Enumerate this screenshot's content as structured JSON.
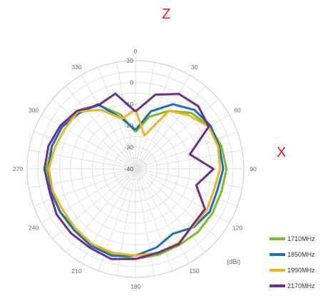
{
  "labels": {
    "top": "Z",
    "right": "X"
  },
  "chart_data": {
    "type": "polar-line",
    "unit": "(dBi)",
    "angle_ticks": [
      "0",
      "30",
      "60",
      "90",
      "120",
      "150",
      "180",
      "210",
      "240",
      "270",
      "300",
      "330"
    ],
    "radial_ticks": [
      "10",
      "0",
      "-10",
      "-20",
      "-30",
      "-40"
    ],
    "rlim": [
      -40,
      10
    ],
    "angle_direction": "clockwise",
    "angle_zero": "top",
    "grid": true,
    "legend_position": "bottom-right",
    "angles": [
      0,
      15,
      30,
      45,
      60,
      75,
      90,
      105,
      120,
      135,
      150,
      165,
      180,
      195,
      210,
      225,
      240,
      255,
      270,
      285,
      300,
      315,
      330,
      345
    ],
    "series": [
      {
        "name": "1710MHz",
        "color": "#7cbd2b",
        "values": [
          -23,
          -15,
          -9,
          -3.5,
          -0.5,
          1,
          2,
          1,
          1,
          1,
          0.5,
          1,
          1.5,
          1,
          0,
          -1,
          0,
          0,
          1,
          0,
          -1,
          -3,
          -6,
          -14
        ]
      },
      {
        "name": "1850MHz",
        "color": "#1f6eb8",
        "values": [
          -22,
          -12.5,
          -5.5,
          -1.5,
          0,
          0,
          0.5,
          -1,
          -0.5,
          -2,
          -5.5,
          -2.5,
          0,
          1.5,
          1,
          0,
          0,
          0.5,
          0,
          0,
          -1,
          -3.5,
          -5.5,
          -16
        ]
      },
      {
        "name": "1990MHz",
        "color": "#f0b323",
        "values": [
          -12.5,
          -24,
          -9,
          -5,
          -1,
          -0.5,
          -1,
          -2.5,
          -2,
          -2.5,
          -0.5,
          0,
          0,
          0,
          0,
          -1,
          -1.5,
          -0.5,
          0,
          -1.5,
          -2.5,
          -2.5,
          -8.5,
          -16
        ]
      },
      {
        "name": "2170MHz",
        "color": "#6a2f8f",
        "values": [
          -13.5,
          -4.5,
          0,
          1,
          -1,
          -14,
          -4,
          -11,
          -3,
          -3,
          0,
          0,
          1.5,
          3,
          2,
          2,
          2,
          1,
          2,
          1.5,
          0,
          -2,
          -6,
          -4
        ]
      }
    ]
  }
}
